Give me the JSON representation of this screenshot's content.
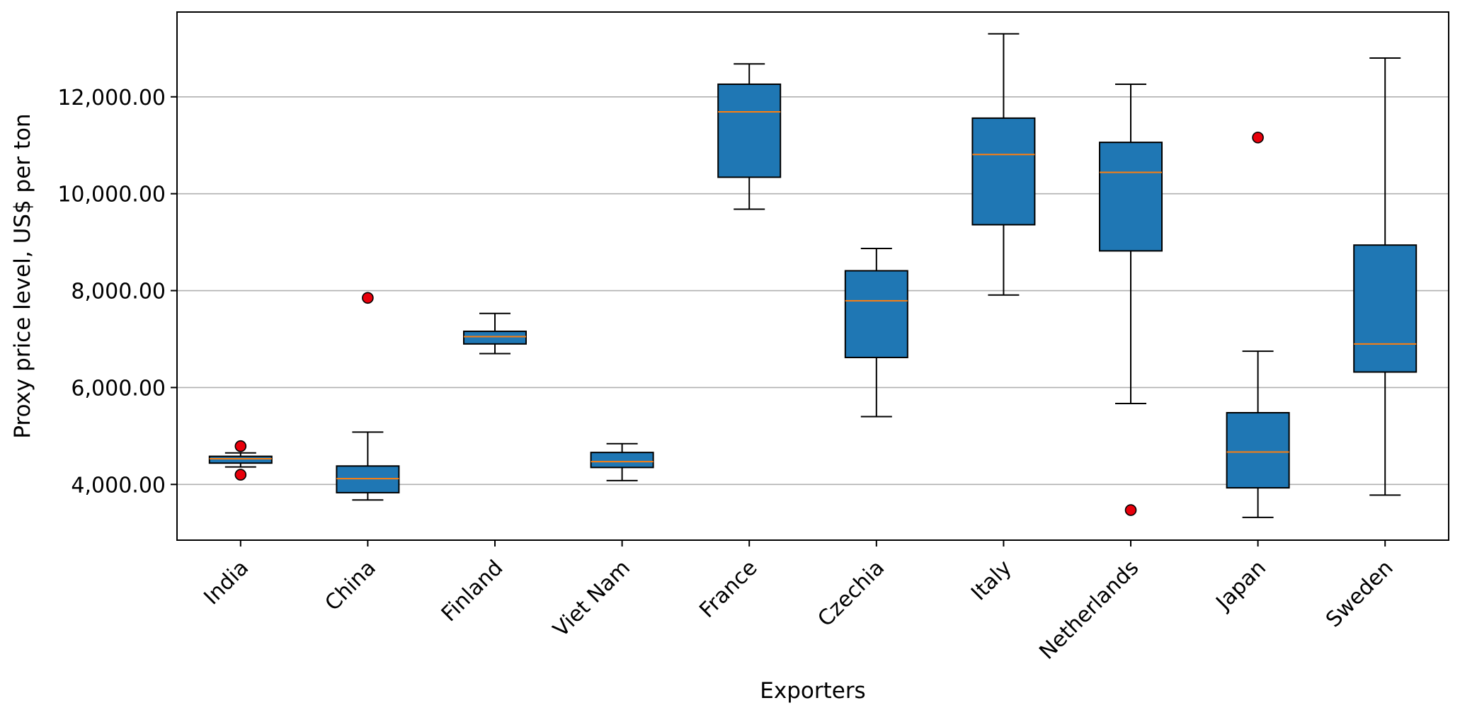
{
  "chart_data": {
    "type": "box",
    "xlabel": "Exporters",
    "ylabel": "Proxy price level, US$ per ton",
    "ylim": [
      2850,
      13750
    ],
    "yticks": [
      4000,
      6000,
      8000,
      10000,
      12000
    ],
    "ytick_labels": [
      "4,000.00",
      "6,000.00",
      "8,000.00",
      "10,000.00",
      "12,000.00"
    ],
    "grid": "horizontal",
    "box_color": "#1f77b4",
    "median_color": "#ff7f0e",
    "outlier_color": "#e8000b",
    "categories": [
      "India",
      "China",
      "Finland",
      "Viet Nam",
      "France",
      "Czechia",
      "Italy",
      "Netherlands",
      "Japan",
      "Sweden"
    ],
    "boxes": [
      {
        "name": "India",
        "whisker_low": 4360,
        "q1": 4440,
        "median": 4530,
        "q3": 4580,
        "whisker_high": 4650,
        "outliers": [
          4790,
          4200
        ]
      },
      {
        "name": "China",
        "whisker_low": 3680,
        "q1": 3830,
        "median": 4120,
        "q3": 4380,
        "whisker_high": 5080,
        "outliers": [
          7850
        ]
      },
      {
        "name": "Finland",
        "whisker_low": 6700,
        "q1": 6900,
        "median": 7050,
        "q3": 7160,
        "whisker_high": 7530,
        "outliers": []
      },
      {
        "name": "Viet Nam",
        "whisker_low": 4080,
        "q1": 4350,
        "median": 4470,
        "q3": 4660,
        "whisker_high": 4840,
        "outliers": []
      },
      {
        "name": "France",
        "whisker_low": 9680,
        "q1": 10340,
        "median": 11690,
        "q3": 12260,
        "whisker_high": 12680,
        "outliers": []
      },
      {
        "name": "Czechia",
        "whisker_low": 5400,
        "q1": 6620,
        "median": 7790,
        "q3": 8410,
        "whisker_high": 8870,
        "outliers": []
      },
      {
        "name": "Italy",
        "whisker_low": 7910,
        "q1": 9360,
        "median": 10810,
        "q3": 11560,
        "whisker_high": 13300,
        "outliers": []
      },
      {
        "name": "Netherlands",
        "whisker_low": 5670,
        "q1": 8820,
        "median": 10440,
        "q3": 11060,
        "whisker_high": 12260,
        "outliers": [
          3470
        ]
      },
      {
        "name": "Japan",
        "whisker_low": 3320,
        "q1": 3930,
        "median": 4670,
        "q3": 5480,
        "whisker_high": 6750,
        "outliers": [
          11160
        ]
      },
      {
        "name": "Sweden",
        "whisker_low": 3780,
        "q1": 6320,
        "median": 6900,
        "q3": 8940,
        "whisker_high": 12800,
        "outliers": []
      }
    ]
  }
}
